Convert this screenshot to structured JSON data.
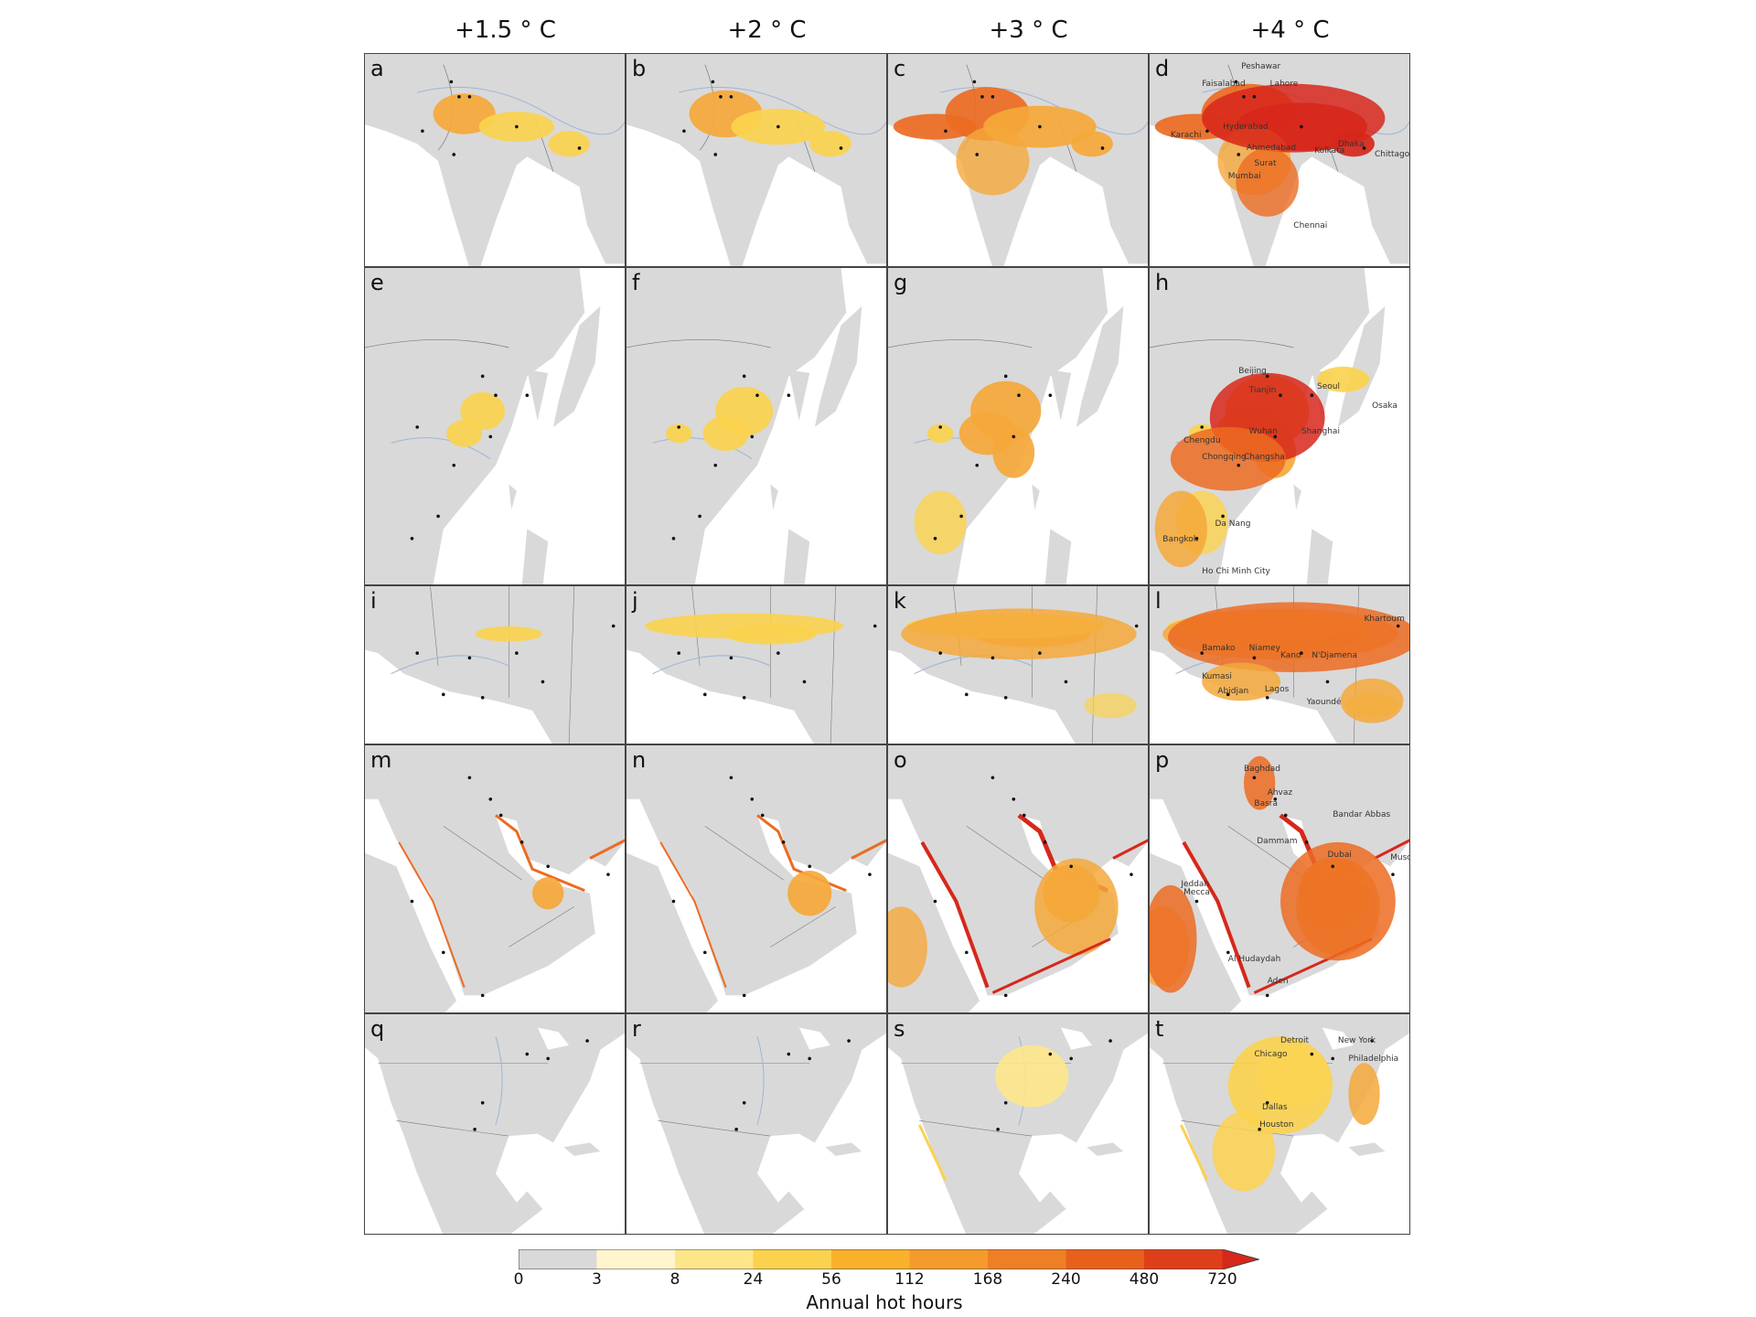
{
  "columns": [
    "+1.5$^\\circ$C",
    "+2$^\\circ$C",
    "+3$^\\circ$C",
    "+4$^\\circ$C"
  ],
  "column_labels": [
    "+1.5 ° C",
    "+2 ° C",
    "+3 ° C",
    "+4 ° C"
  ],
  "rows": [
    {
      "region": "south-asia",
      "letters": [
        "a",
        "b",
        "c",
        "d"
      ],
      "intensity": [
        1,
        2,
        3,
        4
      ]
    },
    {
      "region": "east-asia",
      "letters": [
        "e",
        "f",
        "g",
        "h"
      ],
      "intensity": [
        1,
        2,
        3,
        4
      ]
    },
    {
      "region": "west-africa",
      "letters": [
        "i",
        "j",
        "k",
        "l"
      ],
      "intensity": [
        1,
        2,
        3,
        4
      ]
    },
    {
      "region": "arabian-peninsula",
      "letters": [
        "m",
        "n",
        "o",
        "p"
      ],
      "intensity": [
        1,
        2,
        3,
        4
      ]
    },
    {
      "region": "north-america",
      "letters": [
        "q",
        "r",
        "s",
        "t"
      ],
      "intensity": [
        1,
        2,
        3,
        4
      ]
    }
  ],
  "city_labels": {
    "d": [
      "Peshawar",
      "Faisalabad",
      "Lahore",
      "Hyderabad",
      "Karachi",
      "Ahmedabad",
      "Kolkata",
      "Dhaka",
      "Surat",
      "Chittagong",
      "Mumbai",
      "Chennai"
    ],
    "h": [
      "Beijing",
      "Tianjin",
      "Seoul",
      "Osaka",
      "Chengdu",
      "Wuhan",
      "Shanghai",
      "Chongqing",
      "Changsha",
      "Da Nang",
      "Bangkok",
      "Ho Chi Minh City"
    ],
    "l": [
      "Khartoum",
      "Bamako",
      "Niamey",
      "Kano",
      "N'Djamena",
      "Kumasi",
      "Abidjan",
      "Lagos",
      "Yaoundé"
    ],
    "p": [
      "Baghdad",
      "Ahvaz",
      "Basra",
      "Bandar Abbas",
      "Dammam",
      "Dubai",
      "Muscat",
      "Jeddah",
      "Mecca",
      "Al Hudaydah",
      "Aden"
    ],
    "t": [
      "Detroit",
      "New York",
      "Chicago",
      "Philadelphia",
      "Dallas",
      "Houston"
    ]
  },
  "colorbar": {
    "ticks": [
      "0",
      "3",
      "8",
      "24",
      "56",
      "112",
      "168",
      "240",
      "480",
      "720"
    ],
    "colors": [
      "#d9d9d9",
      "#fff6cf",
      "#fde68a",
      "#fbd24e",
      "#f9b12b",
      "#f59b2c",
      "#ef7f24",
      "#e8611c",
      "#de3f1a"
    ],
    "extend_color": "#d7271b",
    "label": "Annual hot hours"
  },
  "colors": {
    "land": "#d9d9d9",
    "border": "#7a7a7a",
    "river": "#9fb4d6",
    "sea": "#ffffff",
    "l1": "#fde68a",
    "l2": "#fbd24e",
    "l3": "#f5a83a",
    "l4": "#ec6b22",
    "l5": "#d7271b"
  }
}
